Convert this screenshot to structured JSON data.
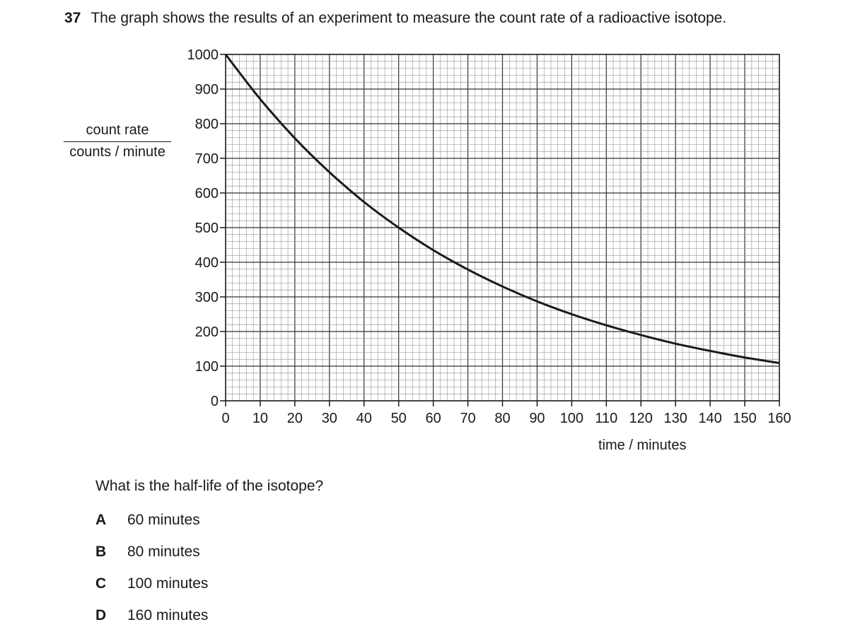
{
  "question": {
    "number": "37",
    "text": "The graph shows the results of an experiment to measure the count rate of a radioactive isotope.",
    "prompt": "What is the half-life of the isotope?",
    "options": [
      {
        "letter": "A",
        "text": "60 minutes"
      },
      {
        "letter": "B",
        "text": "80 minutes"
      },
      {
        "letter": "C",
        "text": "100 minutes"
      },
      {
        "letter": "D",
        "text": "160 minutes"
      }
    ]
  },
  "chart_data": {
    "type": "line",
    "title": "",
    "xlabel": "time / minutes",
    "ylabel_top": "count rate",
    "ylabel_bottom": "counts / minute",
    "xlim": [
      0,
      160
    ],
    "ylim": [
      0,
      1000
    ],
    "x_ticks": [
      0,
      10,
      20,
      30,
      40,
      50,
      60,
      70,
      80,
      90,
      100,
      110,
      120,
      130,
      140,
      150,
      160
    ],
    "y_ticks": [
      0,
      100,
      200,
      300,
      400,
      500,
      600,
      700,
      800,
      900,
      1000
    ],
    "grid": true,
    "series": [
      {
        "x": [
          0,
          10,
          20,
          30,
          40,
          50,
          60,
          70,
          80,
          90,
          100,
          110,
          120,
          130,
          140,
          150,
          160
        ],
        "y": [
          1000,
          871,
          758,
          660,
          574,
          500,
          435,
          379,
          330,
          287,
          250,
          218,
          190,
          165,
          144,
          125,
          109
        ]
      }
    ]
  }
}
